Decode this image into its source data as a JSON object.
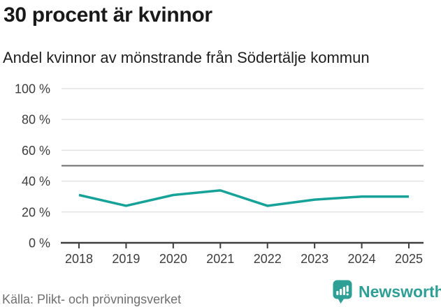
{
  "chart_data": {
    "type": "line",
    "title": "30 procent är kvinnor",
    "subtitle": "Andel kvinnor av mönstrande från Södertälje kommun",
    "x": [
      2018,
      2019,
      2020,
      2021,
      2022,
      2023,
      2024,
      2025
    ],
    "series": [
      {
        "name": "Andel kvinnor av mönstrande",
        "values": [
          31,
          24,
          31,
          34,
          24,
          28,
          30,
          30
        ]
      }
    ],
    "xlabel": "",
    "ylabel": "",
    "ylim": [
      0,
      100
    ],
    "yticks": [
      0,
      20,
      40,
      60,
      80,
      100
    ],
    "ytick_format": "{v} %",
    "reference_line": 50,
    "grid": true,
    "legend": "none",
    "colors": {
      "line": "#16a298",
      "reference": "#6b6b6b",
      "grid": "#e3e3e3",
      "axis": "#3f3f3f",
      "brand": "#2e9f94"
    }
  },
  "footer": {
    "source": "Källa: Plikt- och prövningsverket",
    "brand": "Newsworthy"
  }
}
